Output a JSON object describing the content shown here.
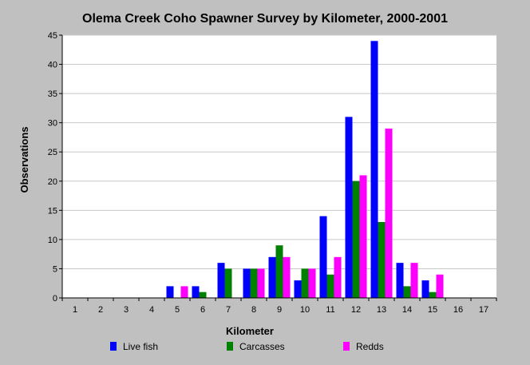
{
  "chart_data": {
    "type": "bar",
    "title": "Olema Creek Coho Spawner Survey by Kilometer, 2000-2001",
    "xlabel": "Kilometer",
    "ylabel": "Observations",
    "ylim": [
      0,
      45
    ],
    "yticks": [
      0,
      5,
      10,
      15,
      20,
      25,
      30,
      35,
      40,
      45
    ],
    "grid": true,
    "legend_position": "bottom",
    "categories": [
      "1",
      "2",
      "3",
      "4",
      "5",
      "6",
      "7",
      "8",
      "9",
      "10",
      "11",
      "12",
      "13",
      "14",
      "15",
      "16",
      "17"
    ],
    "series": [
      {
        "name": "Live fish",
        "color": "#0000ff",
        "values": [
          0,
          0,
          0,
          0,
          2,
          2,
          6,
          5,
          7,
          3,
          14,
          31,
          44,
          6,
          3,
          0,
          0
        ]
      },
      {
        "name": "Carcasses",
        "color": "#008000",
        "values": [
          0,
          0,
          0,
          0,
          0,
          1,
          5,
          5,
          9,
          5,
          4,
          20,
          13,
          2,
          1,
          0,
          0
        ]
      },
      {
        "name": "Redds",
        "color": "#ff00ff",
        "values": [
          0,
          0,
          0,
          0,
          2,
          0,
          0,
          5,
          7,
          5,
          7,
          21,
          29,
          6,
          4,
          0,
          0
        ]
      }
    ]
  }
}
